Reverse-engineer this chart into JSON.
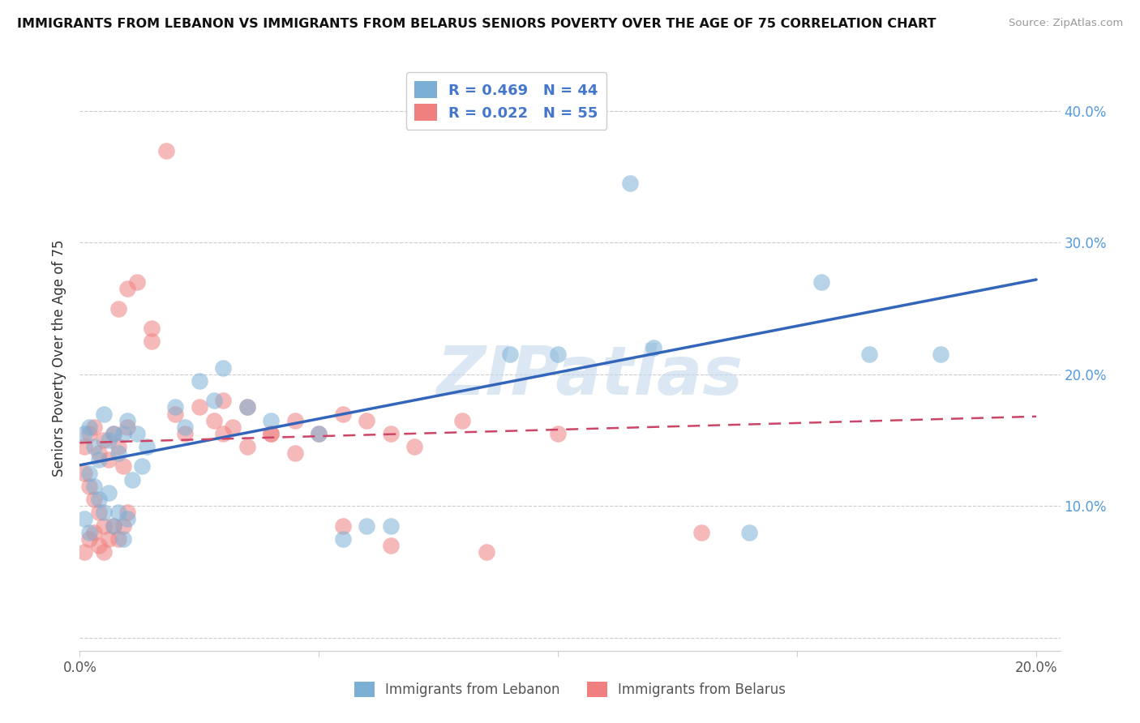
{
  "title": "IMMIGRANTS FROM LEBANON VS IMMIGRANTS FROM BELARUS SENIORS POVERTY OVER THE AGE OF 75 CORRELATION CHART",
  "source": "Source: ZipAtlas.com",
  "ylabel": "Seniors Poverty Over the Age of 75",
  "xlim": [
    0.0,
    0.205
  ],
  "ylim": [
    -0.01,
    0.435
  ],
  "x_ticks": [
    0.0,
    0.05,
    0.1,
    0.15,
    0.2
  ],
  "x_tick_labels": [
    "0.0%",
    "",
    "",
    "",
    "20.0%"
  ],
  "y_ticks": [
    0.0,
    0.1,
    0.2,
    0.3,
    0.4
  ],
  "y_tick_labels_right": [
    "",
    "10.0%",
    "20.0%",
    "30.0%",
    "40.0%"
  ],
  "legend_text1": "R = 0.469   N = 44",
  "legend_text2": "R = 0.022   N = 55",
  "color_lebanon": "#7bafd4",
  "color_belarus": "#f08080",
  "line_color_lebanon": "#3366bb",
  "line_color_belarus": "#cc4466",
  "watermark": "ZIPatlas",
  "leb_line_x0": 0.0,
  "leb_line_y0": 0.131,
  "leb_line_x1": 0.2,
  "leb_line_y1": 0.272,
  "bel_line_x0": 0.0,
  "bel_line_y0": 0.148,
  "bel_line_x1": 0.2,
  "bel_line_y1": 0.168,
  "lebanon_points": [
    [
      0.001,
      0.155
    ],
    [
      0.002,
      0.16
    ],
    [
      0.003,
      0.145
    ],
    [
      0.004,
      0.135
    ],
    [
      0.005,
      0.17
    ],
    [
      0.006,
      0.15
    ],
    [
      0.007,
      0.155
    ],
    [
      0.008,
      0.14
    ],
    [
      0.009,
      0.155
    ],
    [
      0.01,
      0.165
    ],
    [
      0.011,
      0.12
    ],
    [
      0.012,
      0.155
    ],
    [
      0.013,
      0.13
    ],
    [
      0.014,
      0.145
    ],
    [
      0.002,
      0.125
    ],
    [
      0.003,
      0.115
    ],
    [
      0.004,
      0.105
    ],
    [
      0.005,
      0.095
    ],
    [
      0.006,
      0.11
    ],
    [
      0.007,
      0.085
    ],
    [
      0.008,
      0.095
    ],
    [
      0.009,
      0.075
    ],
    [
      0.01,
      0.09
    ],
    [
      0.001,
      0.09
    ],
    [
      0.002,
      0.08
    ],
    [
      0.02,
      0.175
    ],
    [
      0.022,
      0.16
    ],
    [
      0.025,
      0.195
    ],
    [
      0.028,
      0.18
    ],
    [
      0.03,
      0.205
    ],
    [
      0.035,
      0.175
    ],
    [
      0.04,
      0.165
    ],
    [
      0.05,
      0.155
    ],
    [
      0.055,
      0.075
    ],
    [
      0.06,
      0.085
    ],
    [
      0.065,
      0.085
    ],
    [
      0.09,
      0.215
    ],
    [
      0.1,
      0.215
    ],
    [
      0.115,
      0.345
    ],
    [
      0.12,
      0.22
    ],
    [
      0.155,
      0.27
    ],
    [
      0.165,
      0.215
    ],
    [
      0.18,
      0.215
    ],
    [
      0.14,
      0.08
    ]
  ],
  "belarus_points": [
    [
      0.001,
      0.145
    ],
    [
      0.002,
      0.155
    ],
    [
      0.003,
      0.16
    ],
    [
      0.004,
      0.14
    ],
    [
      0.005,
      0.15
    ],
    [
      0.006,
      0.135
    ],
    [
      0.007,
      0.155
    ],
    [
      0.008,
      0.145
    ],
    [
      0.009,
      0.13
    ],
    [
      0.01,
      0.16
    ],
    [
      0.001,
      0.125
    ],
    [
      0.002,
      0.115
    ],
    [
      0.003,
      0.105
    ],
    [
      0.004,
      0.095
    ],
    [
      0.005,
      0.085
    ],
    [
      0.006,
      0.075
    ],
    [
      0.007,
      0.085
    ],
    [
      0.008,
      0.075
    ],
    [
      0.009,
      0.085
    ],
    [
      0.01,
      0.095
    ],
    [
      0.001,
      0.065
    ],
    [
      0.002,
      0.075
    ],
    [
      0.003,
      0.08
    ],
    [
      0.004,
      0.07
    ],
    [
      0.005,
      0.065
    ],
    [
      0.018,
      0.37
    ],
    [
      0.012,
      0.27
    ],
    [
      0.01,
      0.265
    ],
    [
      0.008,
      0.25
    ],
    [
      0.015,
      0.235
    ],
    [
      0.015,
      0.225
    ],
    [
      0.02,
      0.17
    ],
    [
      0.022,
      0.155
    ],
    [
      0.025,
      0.175
    ],
    [
      0.028,
      0.165
    ],
    [
      0.03,
      0.18
    ],
    [
      0.032,
      0.16
    ],
    [
      0.035,
      0.175
    ],
    [
      0.04,
      0.155
    ],
    [
      0.045,
      0.165
    ],
    [
      0.05,
      0.155
    ],
    [
      0.055,
      0.17
    ],
    [
      0.06,
      0.165
    ],
    [
      0.065,
      0.155
    ],
    [
      0.07,
      0.145
    ],
    [
      0.08,
      0.165
    ],
    [
      0.03,
      0.155
    ],
    [
      0.035,
      0.145
    ],
    [
      0.04,
      0.155
    ],
    [
      0.045,
      0.14
    ],
    [
      0.1,
      0.155
    ],
    [
      0.055,
      0.085
    ],
    [
      0.065,
      0.07
    ],
    [
      0.085,
      0.065
    ],
    [
      0.13,
      0.08
    ]
  ]
}
